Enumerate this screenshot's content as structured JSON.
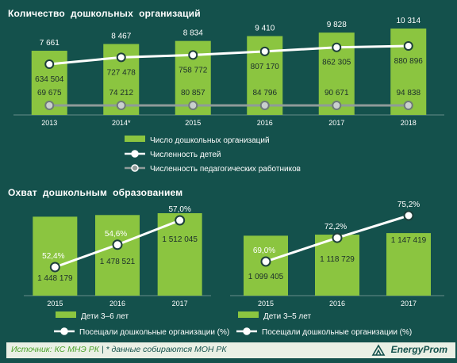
{
  "colors": {
    "bar": "#8bc540",
    "line_white": "#ffffff",
    "line_gray": "#8f9b99",
    "panel": "#14514c",
    "text": "#ffffff"
  },
  "chart_data": [
    {
      "type": "bar",
      "title": "Количество  дошкольных  организаций",
      "categories": [
        "2013",
        "2014*",
        "2015",
        "2016",
        "2017",
        "2018"
      ],
      "series": [
        {
          "name": "Число дошкольных организаций",
          "values": [
            7661,
            8467,
            8834,
            9410,
            9828,
            10314
          ],
          "labels": [
            "7 661",
            "8 467",
            "8 834",
            "9 410",
            "9 828",
            "10 314"
          ]
        },
        {
          "name": "Численность детей",
          "type": "line",
          "values": [
            634504,
            727478,
            758772,
            807170,
            862305,
            880896
          ],
          "labels": [
            "634 504",
            "727 478",
            "758 772",
            "807 170",
            "862 305",
            "880 896"
          ]
        },
        {
          "name": "Численность педагогических работников",
          "type": "line",
          "values": [
            69675,
            74212,
            80857,
            84796,
            90671,
            94838
          ],
          "labels": [
            "69 675",
            "74 212",
            "80 857",
            "84 796",
            "90 671",
            "94 838"
          ]
        }
      ]
    },
    {
      "type": "bar",
      "title": "Охват  дошкольным  образованием",
      "categories": [
        "2015",
        "2016",
        "2017"
      ],
      "series": [
        {
          "name": "Дети 3–6 лет",
          "values": [
            1448179,
            1478521,
            1512045
          ],
          "labels": [
            "1 448 179",
            "1 478 521",
            "1 512 045"
          ]
        },
        {
          "name": "Посещали дошкольные организации (%)",
          "type": "line",
          "values": [
            52.4,
            54.6,
            57.0
          ],
          "labels": [
            "52,4%",
            "54,6%",
            "57,0%"
          ]
        }
      ]
    },
    {
      "type": "bar",
      "categories": [
        "2015",
        "2016",
        "2017"
      ],
      "series": [
        {
          "name": "Дети 3–5 лет",
          "values": [
            1099405,
            1118729,
            1147419
          ],
          "labels": [
            "1 099 405",
            "1 118 729",
            "1 147 419"
          ]
        },
        {
          "name": "Посещали дошкольные организации (%)",
          "type": "line",
          "values": [
            69.0,
            72.2,
            75.2
          ],
          "labels": [
            "69,0%",
            "72,2%",
            "75,2%"
          ]
        }
      ]
    }
  ],
  "footer": {
    "source_label": "Источник:",
    "source_value": "КС МНЭ РК",
    "note": " | * данные собираются МОН РК",
    "brand": "EnergyProm"
  }
}
